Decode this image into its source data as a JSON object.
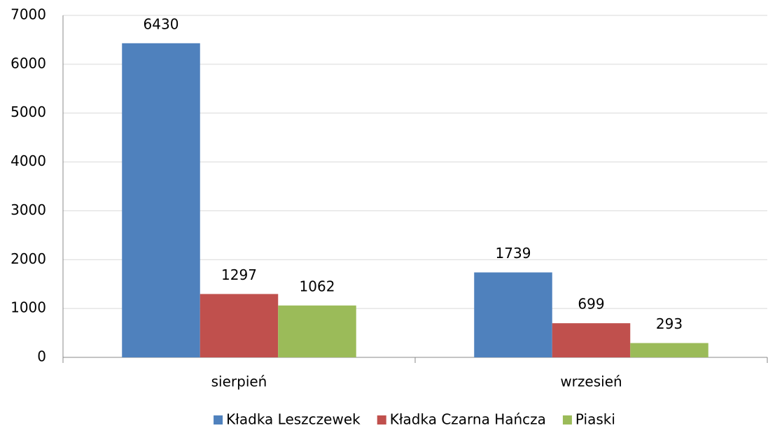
{
  "chart_data": {
    "type": "bar",
    "categories": [
      "sierpień",
      "wrzesień"
    ],
    "series": [
      {
        "name": "Kładka Leszczewek",
        "color": "#4f81bd",
        "values": [
          6430,
          1739
        ]
      },
      {
        "name": "Kładka Czarna Hańcza",
        "color": "#c0504d",
        "values": [
          1297,
          699
        ]
      },
      {
        "name": "Piaski",
        "color": "#9bbb59",
        "values": [
          1062,
          293
        ]
      }
    ],
    "ylim": [
      0,
      7000
    ],
    "yticks": [
      0,
      1000,
      2000,
      3000,
      4000,
      5000,
      6000,
      7000
    ],
    "grid": true,
    "legend": "bottom"
  }
}
